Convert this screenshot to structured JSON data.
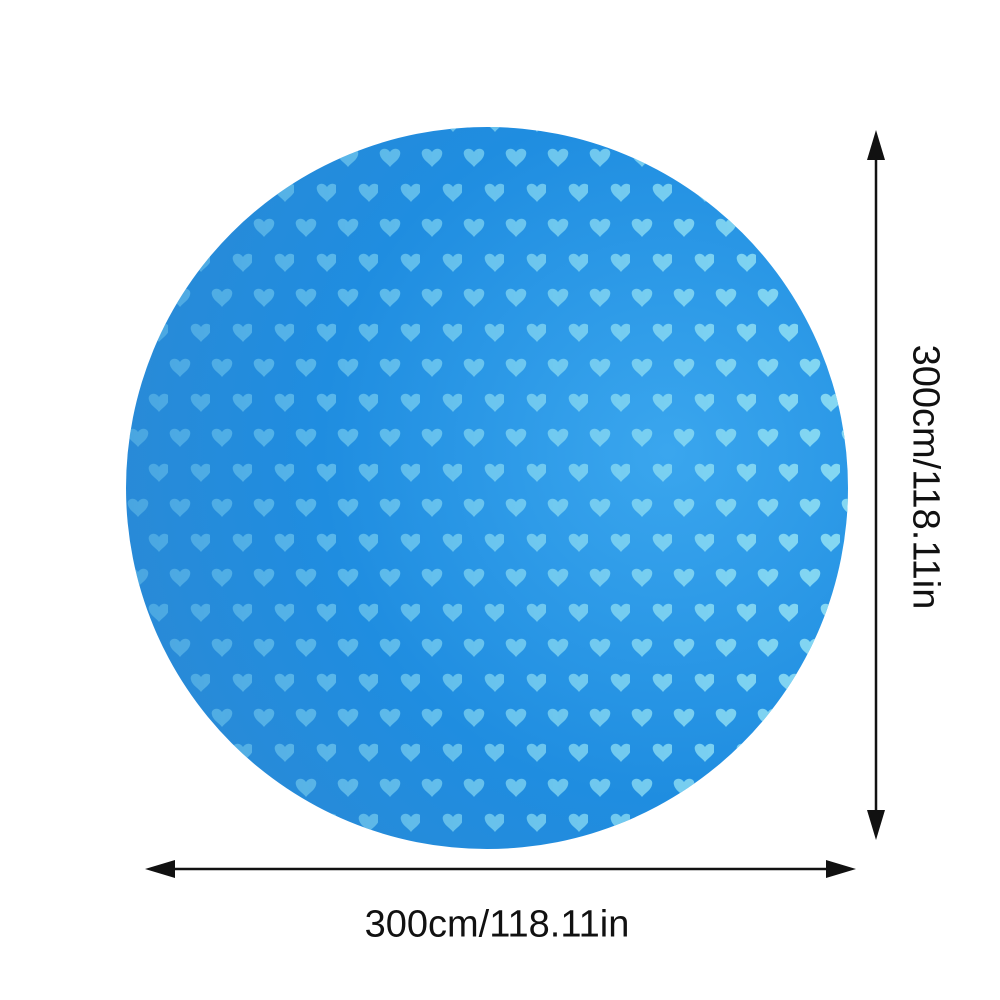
{
  "product": {
    "colors": {
      "base": "#1e8de0",
      "heart": "#86d8f2",
      "edge": "#1a7ed0"
    },
    "pattern_icon": "heart-icon"
  },
  "dimensions": {
    "width_label": "300cm/118.11in",
    "height_label": "300cm/118.11in"
  }
}
